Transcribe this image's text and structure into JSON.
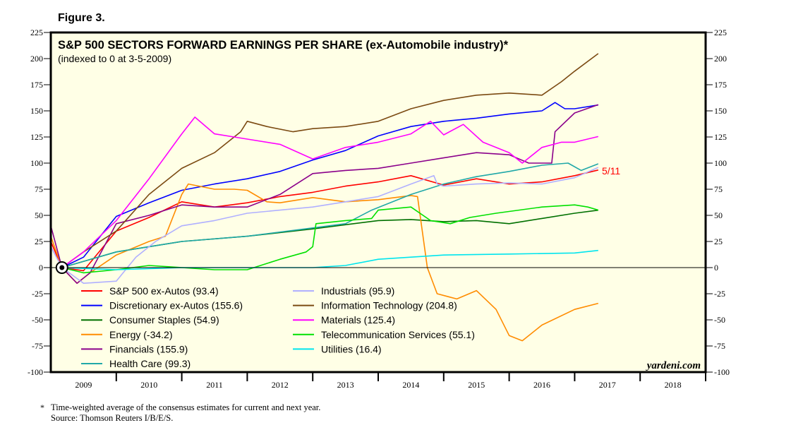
{
  "figure_label": "Figure 3.",
  "chart_data": {
    "type": "line",
    "title": "S&P 500 SECTORS FORWARD EARNINGS PER SHARE (ex-Automobile industry)*",
    "subtitle": "(indexed to 0 at 3-5-2009)",
    "xlabel": "",
    "ylabel": "",
    "xlim": [
      2009,
      2019
    ],
    "ylim": [
      -100,
      225
    ],
    "yticks": [
      225,
      200,
      175,
      150,
      125,
      100,
      75,
      50,
      25,
      0,
      -25,
      -50,
      -75,
      -100
    ],
    "xtick_labels": [
      "2009",
      "2010",
      "2011",
      "2012",
      "2013",
      "2014",
      "2015",
      "2016",
      "2017",
      "2018"
    ],
    "grid": false,
    "legend_placement": "bottom-left",
    "index_date": 2009.17,
    "end_label": "5/11",
    "source_brand": "yardeni.com",
    "series": [
      {
        "name": "S&P 500 ex-Autos (93.4)",
        "color": "#ff0000",
        "points": [
          [
            2009.0,
            25
          ],
          [
            2009.17,
            0
          ],
          [
            2009.5,
            -3
          ],
          [
            2010,
            35
          ],
          [
            2010.5,
            48
          ],
          [
            2011,
            63
          ],
          [
            2011.5,
            58
          ],
          [
            2012,
            62
          ],
          [
            2012.5,
            68
          ],
          [
            2013,
            72
          ],
          [
            2013.5,
            78
          ],
          [
            2014,
            82
          ],
          [
            2014.5,
            88
          ],
          [
            2015,
            79
          ],
          [
            2015.5,
            85
          ],
          [
            2016,
            80
          ],
          [
            2016.5,
            82
          ],
          [
            2017,
            88
          ],
          [
            2017.36,
            93.4
          ]
        ]
      },
      {
        "name": "Discretionary ex-Autos (155.6)",
        "color": "#0000ff",
        "points": [
          [
            2009.17,
            0
          ],
          [
            2009.5,
            10
          ],
          [
            2010,
            49
          ],
          [
            2010.5,
            62
          ],
          [
            2011,
            74
          ],
          [
            2011.5,
            80
          ],
          [
            2012,
            85
          ],
          [
            2012.5,
            92
          ],
          [
            2013,
            103
          ],
          [
            2013.5,
            112
          ],
          [
            2014,
            126
          ],
          [
            2014.5,
            135
          ],
          [
            2015,
            140
          ],
          [
            2015.5,
            143
          ],
          [
            2016,
            147
          ],
          [
            2016.5,
            150
          ],
          [
            2016.7,
            158
          ],
          [
            2016.85,
            152
          ],
          [
            2017,
            152
          ],
          [
            2017.36,
            155.6
          ]
        ]
      },
      {
        "name": "Consumer Staples (54.9)",
        "color": "#007000",
        "points": [
          [
            2009.17,
            0
          ],
          [
            2010,
            15
          ],
          [
            2011,
            25
          ],
          [
            2012,
            30
          ],
          [
            2013,
            37
          ],
          [
            2014,
            45
          ],
          [
            2014.5,
            46
          ],
          [
            2015,
            44
          ],
          [
            2015.5,
            45
          ],
          [
            2016,
            42
          ],
          [
            2016.5,
            47
          ],
          [
            2017,
            52
          ],
          [
            2017.36,
            54.9
          ]
        ]
      },
      {
        "name": "Energy (-34.2)",
        "color": "#ff8c00",
        "points": [
          [
            2009.0,
            30
          ],
          [
            2009.17,
            0
          ],
          [
            2009.4,
            -15
          ],
          [
            2009.6,
            -5
          ],
          [
            2010,
            12
          ],
          [
            2010.5,
            25
          ],
          [
            2010.75,
            30
          ],
          [
            2011,
            70
          ],
          [
            2011.1,
            80
          ],
          [
            2011.5,
            75
          ],
          [
            2011.8,
            75
          ],
          [
            2012,
            74
          ],
          [
            2012.3,
            63
          ],
          [
            2012.5,
            62
          ],
          [
            2013,
            67
          ],
          [
            2013.5,
            63
          ],
          [
            2014,
            65
          ],
          [
            2014.5,
            69
          ],
          [
            2014.6,
            68
          ],
          [
            2014.75,
            0
          ],
          [
            2014.9,
            -25
          ],
          [
            2015.2,
            -30
          ],
          [
            2015.5,
            -22
          ],
          [
            2015.8,
            -40
          ],
          [
            2016,
            -65
          ],
          [
            2016.2,
            -70
          ],
          [
            2016.5,
            -55
          ],
          [
            2017,
            -40
          ],
          [
            2017.36,
            -34.2
          ]
        ]
      },
      {
        "name": "Financials (155.9)",
        "color": "#8b008b",
        "points": [
          [
            2009.0,
            40
          ],
          [
            2009.17,
            0
          ],
          [
            2009.4,
            -15
          ],
          [
            2009.6,
            -5
          ],
          [
            2010,
            42
          ],
          [
            2010.5,
            50
          ],
          [
            2011,
            60
          ],
          [
            2011.5,
            58
          ],
          [
            2012,
            58
          ],
          [
            2012.5,
            70
          ],
          [
            2013,
            90
          ],
          [
            2013.5,
            93
          ],
          [
            2014,
            95
          ],
          [
            2014.5,
            100
          ],
          [
            2015,
            105
          ],
          [
            2015.5,
            110
          ],
          [
            2016,
            108
          ],
          [
            2016.3,
            100
          ],
          [
            2016.65,
            100
          ],
          [
            2016.7,
            130
          ],
          [
            2017,
            148
          ],
          [
            2017.36,
            155.9
          ]
        ]
      },
      {
        "name": "Health Care (99.3)",
        "color": "#20a8a8",
        "points": [
          [
            2009.17,
            0
          ],
          [
            2010,
            15
          ],
          [
            2011,
            25
          ],
          [
            2012,
            30
          ],
          [
            2013,
            38
          ],
          [
            2013.5,
            42
          ],
          [
            2013.9,
            55
          ],
          [
            2014.5,
            70
          ],
          [
            2015,
            80
          ],
          [
            2015.5,
            87
          ],
          [
            2016,
            92
          ],
          [
            2016.5,
            98
          ],
          [
            2016.9,
            100
          ],
          [
            2017.1,
            93
          ],
          [
            2017.36,
            99.3
          ]
        ]
      },
      {
        "name": "Industrials (95.9)",
        "color": "#b0b0ff",
        "points": [
          [
            2009.0,
            20
          ],
          [
            2009.17,
            0
          ],
          [
            2009.5,
            -15
          ],
          [
            2010,
            -13
          ],
          [
            2010.3,
            10
          ],
          [
            2010.6,
            25
          ],
          [
            2011,
            40
          ],
          [
            2011.5,
            45
          ],
          [
            2012,
            52
          ],
          [
            2012.5,
            55
          ],
          [
            2013,
            58
          ],
          [
            2013.5,
            63
          ],
          [
            2014,
            68
          ],
          [
            2014.5,
            80
          ],
          [
            2014.85,
            88
          ],
          [
            2014.9,
            80
          ],
          [
            2015,
            78
          ],
          [
            2015.5,
            80
          ],
          [
            2016,
            81
          ],
          [
            2016.5,
            80
          ],
          [
            2017,
            86
          ],
          [
            2017.36,
            95.9
          ]
        ]
      },
      {
        "name": "Information Technology (204.8)",
        "color": "#7b4a12",
        "points": [
          [
            2009.17,
            0
          ],
          [
            2009.5,
            15
          ],
          [
            2010,
            35
          ],
          [
            2010.5,
            70
          ],
          [
            2011,
            95
          ],
          [
            2011.5,
            110
          ],
          [
            2011.9,
            130
          ],
          [
            2012,
            140
          ],
          [
            2012.3,
            135
          ],
          [
            2012.7,
            130
          ],
          [
            2013,
            133
          ],
          [
            2013.5,
            135
          ],
          [
            2014,
            140
          ],
          [
            2014.5,
            152
          ],
          [
            2015,
            160
          ],
          [
            2015.5,
            165
          ],
          [
            2016,
            167
          ],
          [
            2016.5,
            165
          ],
          [
            2016.8,
            178
          ],
          [
            2017,
            188
          ],
          [
            2017.36,
            204.8
          ]
        ]
      },
      {
        "name": "Materials (125.4)",
        "color": "#ff00ff",
        "points": [
          [
            2009.17,
            0
          ],
          [
            2009.5,
            15
          ],
          [
            2010,
            45
          ],
          [
            2010.5,
            85
          ],
          [
            2011,
            128
          ],
          [
            2011.2,
            144
          ],
          [
            2011.5,
            128
          ],
          [
            2012,
            123
          ],
          [
            2012.5,
            118
          ],
          [
            2013,
            104
          ],
          [
            2013.5,
            115
          ],
          [
            2014,
            120
          ],
          [
            2014.5,
            128
          ],
          [
            2014.8,
            140
          ],
          [
            2015,
            127
          ],
          [
            2015.3,
            137
          ],
          [
            2015.6,
            120
          ],
          [
            2016,
            110
          ],
          [
            2016.2,
            100
          ],
          [
            2016.5,
            115
          ],
          [
            2016.8,
            120
          ],
          [
            2017,
            120
          ],
          [
            2017.36,
            125.4
          ]
        ]
      },
      {
        "name": "Telecommunication Services (55.1)",
        "color": "#00e000",
        "points": [
          [
            2009.17,
            0
          ],
          [
            2009.5,
            -5
          ],
          [
            2010,
            -2
          ],
          [
            2010.5,
            2
          ],
          [
            2011,
            0
          ],
          [
            2011.5,
            -2
          ],
          [
            2012,
            -2
          ],
          [
            2012.5,
            8
          ],
          [
            2012.9,
            15
          ],
          [
            2013,
            20
          ],
          [
            2013.05,
            42
          ],
          [
            2013.5,
            45
          ],
          [
            2013.9,
            47
          ],
          [
            2014,
            55
          ],
          [
            2014.5,
            58
          ],
          [
            2014.8,
            45
          ],
          [
            2015.1,
            42
          ],
          [
            2015.4,
            48
          ],
          [
            2015.8,
            52
          ],
          [
            2016.5,
            58
          ],
          [
            2017,
            60
          ],
          [
            2017.2,
            58
          ],
          [
            2017.36,
            55.1
          ]
        ]
      },
      {
        "name": "Utilities (16.4)",
        "color": "#00e5ee",
        "points": [
          [
            2009.17,
            0
          ],
          [
            2010,
            -2
          ],
          [
            2011,
            0
          ],
          [
            2012,
            0
          ],
          [
            2013,
            0
          ],
          [
            2013.5,
            2
          ],
          [
            2014,
            8
          ],
          [
            2015,
            12
          ],
          [
            2016,
            13
          ],
          [
            2017,
            14
          ],
          [
            2017.36,
            16.4
          ]
        ]
      }
    ]
  },
  "footnote": {
    "marker": "*",
    "line1": "Time-weighted average of the consensus estimates for current and next year.",
    "line2": "Source: Thomson Reuters I/B/E/S."
  }
}
